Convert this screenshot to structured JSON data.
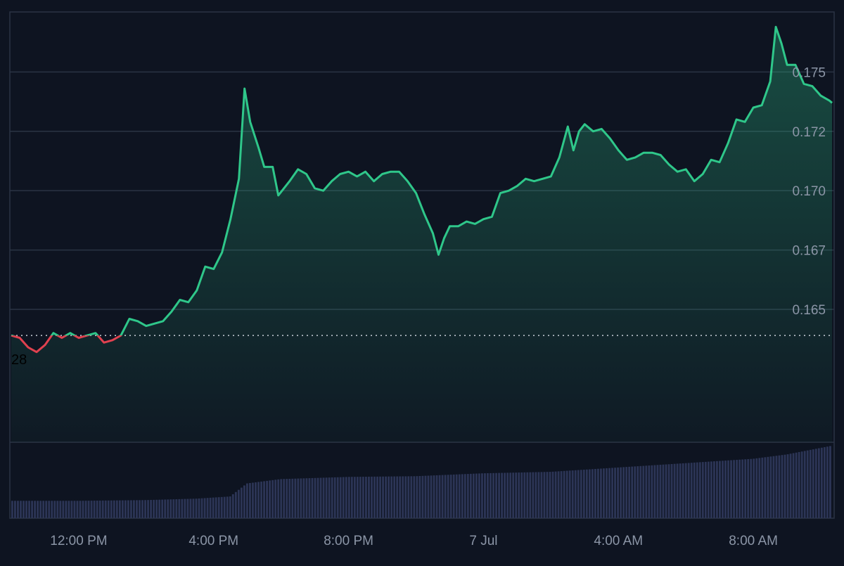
{
  "chart_data": {
    "type": "area",
    "title": "",
    "xlabel": "",
    "ylabel": "",
    "x_tick_labels": [
      "12:00 PM",
      "4:00 PM",
      "8:00 PM",
      "7 Jul",
      "4:00 AM",
      "8:00 AM"
    ],
    "y_tick_labels": [
      "0.165",
      "0.167",
      "0.170",
      "0.172",
      "0.175"
    ],
    "y_ticks": [
      0.165,
      0.1675,
      0.17,
      0.1725,
      0.175
    ],
    "ylim": [
      0.1594,
      0.1775
    ],
    "x_range": [
      "2024-07-06T10:00",
      "2024-07-07T10:20"
    ],
    "reference_line": {
      "value": 0.1639,
      "style": "dotted",
      "label": "28"
    },
    "colors": {
      "above": "#2fc78a",
      "below": "#e0414f",
      "background": "#0e1421",
      "grid": "#2a3344",
      "volume": "#2c3556",
      "axis_text": "#8b95a6"
    },
    "series": [
      {
        "values": [
          [
            "2024-07-06T10:00",
            0.1639
          ],
          [
            "2024-07-06T10:15",
            0.1638
          ],
          [
            "2024-07-06T10:30",
            0.1634
          ],
          [
            "2024-07-06T10:45",
            0.1632
          ],
          [
            "2024-07-06T11:00",
            0.1635
          ],
          [
            "2024-07-06T11:15",
            0.164
          ],
          [
            "2024-07-06T11:30",
            0.1638
          ],
          [
            "2024-07-06T11:45",
            0.164
          ],
          [
            "2024-07-06T12:00",
            0.1638
          ],
          [
            "2024-07-06T12:15",
            0.1639
          ],
          [
            "2024-07-06T12:30",
            0.164
          ],
          [
            "2024-07-06T12:45",
            0.1636
          ],
          [
            "2024-07-06T13:00",
            0.1637
          ],
          [
            "2024-07-06T13:15",
            0.1639
          ],
          [
            "2024-07-06T13:30",
            0.1646
          ],
          [
            "2024-07-06T13:45",
            0.1645
          ],
          [
            "2024-07-06T14:00",
            0.1643
          ],
          [
            "2024-07-06T14:15",
            0.1644
          ],
          [
            "2024-07-06T14:30",
            0.1645
          ],
          [
            "2024-07-06T14:45",
            0.1649
          ],
          [
            "2024-07-06T15:00",
            0.1654
          ],
          [
            "2024-07-06T15:15",
            0.1653
          ],
          [
            "2024-07-06T15:30",
            0.1658
          ],
          [
            "2024-07-06T15:45",
            0.1668
          ],
          [
            "2024-07-06T16:00",
            0.1667
          ],
          [
            "2024-07-06T16:15",
            0.1674
          ],
          [
            "2024-07-06T16:30",
            0.1688
          ],
          [
            "2024-07-06T16:45",
            0.1705
          ],
          [
            "2024-07-06T16:55",
            0.1743
          ],
          [
            "2024-07-06T17:05",
            0.1729
          ],
          [
            "2024-07-06T17:20",
            0.1718
          ],
          [
            "2024-07-06T17:30",
            0.171
          ],
          [
            "2024-07-06T17:45",
            0.171
          ],
          [
            "2024-07-06T17:55",
            0.1698
          ],
          [
            "2024-07-06T18:15",
            0.1704
          ],
          [
            "2024-07-06T18:30",
            0.1709
          ],
          [
            "2024-07-06T18:45",
            0.1707
          ],
          [
            "2024-07-06T19:00",
            0.1701
          ],
          [
            "2024-07-06T19:15",
            0.17
          ],
          [
            "2024-07-06T19:30",
            0.1704
          ],
          [
            "2024-07-06T19:45",
            0.1707
          ],
          [
            "2024-07-06T20:00",
            0.1708
          ],
          [
            "2024-07-06T20:15",
            0.1706
          ],
          [
            "2024-07-06T20:30",
            0.1708
          ],
          [
            "2024-07-06T20:45",
            0.1704
          ],
          [
            "2024-07-06T21:00",
            0.1707
          ],
          [
            "2024-07-06T21:15",
            0.1708
          ],
          [
            "2024-07-06T21:30",
            0.1708
          ],
          [
            "2024-07-06T21:45",
            0.1704
          ],
          [
            "2024-07-06T22:00",
            0.1699
          ],
          [
            "2024-07-06T22:15",
            0.169
          ],
          [
            "2024-07-06T22:30",
            0.1682
          ],
          [
            "2024-07-06T22:40",
            0.1673
          ],
          [
            "2024-07-06T22:50",
            0.168
          ],
          [
            "2024-07-06T23:00",
            0.1685
          ],
          [
            "2024-07-06T23:15",
            0.1685
          ],
          [
            "2024-07-06T23:30",
            0.1687
          ],
          [
            "2024-07-06T23:45",
            0.1686
          ],
          [
            "2024-07-07T00:00",
            0.1688
          ],
          [
            "2024-07-07T00:15",
            0.1689
          ],
          [
            "2024-07-07T00:30",
            0.1699
          ],
          [
            "2024-07-07T00:45",
            0.17
          ],
          [
            "2024-07-07T01:00",
            0.1702
          ],
          [
            "2024-07-07T01:15",
            0.1705
          ],
          [
            "2024-07-07T01:30",
            0.1704
          ],
          [
            "2024-07-07T01:45",
            0.1705
          ],
          [
            "2024-07-07T02:00",
            0.1706
          ],
          [
            "2024-07-07T02:15",
            0.1714
          ],
          [
            "2024-07-07T02:30",
            0.1727
          ],
          [
            "2024-07-07T02:40",
            0.1717
          ],
          [
            "2024-07-07T02:50",
            0.1725
          ],
          [
            "2024-07-07T03:00",
            0.1728
          ],
          [
            "2024-07-07T03:15",
            0.1725
          ],
          [
            "2024-07-07T03:30",
            0.1726
          ],
          [
            "2024-07-07T03:45",
            0.1722
          ],
          [
            "2024-07-07T04:00",
            0.1717
          ],
          [
            "2024-07-07T04:15",
            0.1713
          ],
          [
            "2024-07-07T04:30",
            0.1714
          ],
          [
            "2024-07-07T04:45",
            0.1716
          ],
          [
            "2024-07-07T05:00",
            0.1716
          ],
          [
            "2024-07-07T05:15",
            0.1715
          ],
          [
            "2024-07-07T05:30",
            0.1711
          ],
          [
            "2024-07-07T05:45",
            0.1708
          ],
          [
            "2024-07-07T06:00",
            0.1709
          ],
          [
            "2024-07-07T06:15",
            0.1704
          ],
          [
            "2024-07-07T06:30",
            0.1707
          ],
          [
            "2024-07-07T06:45",
            0.1713
          ],
          [
            "2024-07-07T07:00",
            0.1712
          ],
          [
            "2024-07-07T07:15",
            0.172
          ],
          [
            "2024-07-07T07:30",
            0.173
          ],
          [
            "2024-07-07T07:45",
            0.1729
          ],
          [
            "2024-07-07T08:00",
            0.1735
          ],
          [
            "2024-07-07T08:15",
            0.1736
          ],
          [
            "2024-07-07T08:30",
            0.1746
          ],
          [
            "2024-07-07T08:40",
            0.1769
          ],
          [
            "2024-07-07T08:50",
            0.1762
          ],
          [
            "2024-07-07T09:00",
            0.1753
          ],
          [
            "2024-07-07T09:15",
            0.1753
          ],
          [
            "2024-07-07T09:30",
            0.1745
          ],
          [
            "2024-07-07T09:45",
            0.1744
          ],
          [
            "2024-07-07T10:00",
            0.174
          ],
          [
            "2024-07-07T10:15",
            0.1738
          ],
          [
            "2024-07-07T10:20",
            0.1737
          ]
        ]
      }
    ],
    "volume": {
      "values": [
        [
          "2024-07-06T10:00",
          24
        ],
        [
          "2024-07-06T12:00",
          24
        ],
        [
          "2024-07-06T14:00",
          25
        ],
        [
          "2024-07-06T15:30",
          27
        ],
        [
          "2024-07-06T16:30",
          30
        ],
        [
          "2024-07-06T17:00",
          48
        ],
        [
          "2024-07-06T18:00",
          54
        ],
        [
          "2024-07-06T20:00",
          57
        ],
        [
          "2024-07-06T22:00",
          58
        ],
        [
          "2024-07-07T00:00",
          62
        ],
        [
          "2024-07-07T02:00",
          64
        ],
        [
          "2024-07-07T04:00",
          70
        ],
        [
          "2024-07-07T06:00",
          76
        ],
        [
          "2024-07-07T08:00",
          82
        ],
        [
          "2024-07-07T09:00",
          88
        ],
        [
          "2024-07-07T10:20",
          100
        ]
      ]
    }
  }
}
